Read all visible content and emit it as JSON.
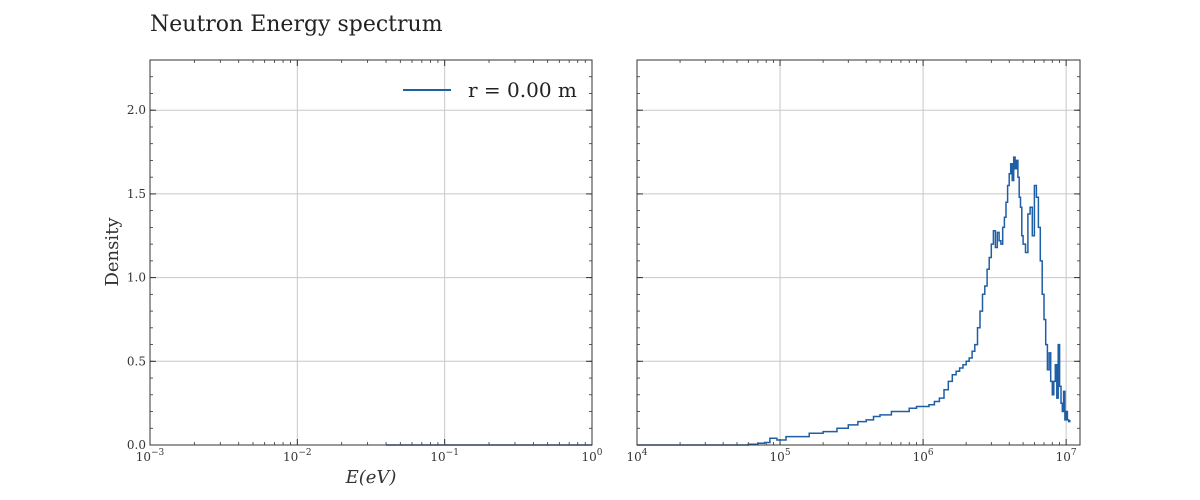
{
  "chart_data": {
    "type": "line",
    "title": "Neutron Energy spectrum",
    "ylabel": "Density",
    "xlabel": "E(eV)",
    "grid": true,
    "legend": {
      "placement": "top-right",
      "entries": [
        "r = 0.00 m"
      ]
    },
    "colors": {
      "series": "#1f5fa5",
      "grid": "#c8c8c8",
      "axes": "#333333"
    },
    "panels": [
      {
        "x_scale": "log",
        "xlim": [
          0.001,
          1
        ],
        "ylim": [
          0,
          2.3
        ],
        "x_ticks": [
          {
            "value": 0.001,
            "base": "10",
            "exp": "−3"
          },
          {
            "value": 0.01,
            "base": "10",
            "exp": "−2"
          },
          {
            "value": 0.1,
            "base": "10",
            "exp": "−1"
          },
          {
            "value": 1,
            "base": "10",
            "exp": "0"
          }
        ],
        "y_ticks": [
          {
            "value": 0.0,
            "label": "0.0"
          },
          {
            "value": 0.5,
            "label": "0.5"
          },
          {
            "value": 1.0,
            "label": "1.0"
          },
          {
            "value": 1.5,
            "label": "1.5"
          },
          {
            "value": 2.0,
            "label": "2.0"
          }
        ],
        "series": [
          {
            "name": "r = 0.00 m",
            "x": [
              0.04,
              0.1,
              0.3,
              1.0
            ],
            "y": [
              0.0,
              0.0,
              0.0,
              0.0
            ]
          }
        ]
      },
      {
        "x_scale": "log",
        "xlim": [
          10000,
          12500000
        ],
        "ylim": [
          0,
          2.3
        ],
        "x_ticks": [
          {
            "value": 10000,
            "base": "10",
            "exp": "4"
          },
          {
            "value": 100000,
            "base": "10",
            "exp": "5"
          },
          {
            "value": 1000000,
            "base": "10",
            "exp": "6"
          },
          {
            "value": 10000000,
            "base": "10",
            "exp": "7"
          }
        ],
        "y_ticks": [
          {
            "value": 0.0,
            "label": ""
          },
          {
            "value": 0.5,
            "label": ""
          },
          {
            "value": 1.0,
            "label": ""
          },
          {
            "value": 1.5,
            "label": ""
          },
          {
            "value": 2.0,
            "label": ""
          }
        ],
        "series": [
          {
            "name": "r = 0.00 m",
            "x": [
              10000,
              30000,
              60000,
              70000,
              78000,
              85000,
              95000,
              110000,
              130000,
              160000,
              200000,
              250000,
              300000,
              350000,
              400000,
              450000,
              500000,
              600000,
              700000,
              800000,
              900000,
              1000000,
              1100000,
              1200000,
              1300000,
              1400000,
              1500000,
              1600000,
              1700000,
              1800000,
              1900000,
              2000000,
              2100000,
              2200000,
              2300000,
              2400000,
              2500000,
              2600000,
              2700000,
              2800000,
              2900000,
              3000000,
              3100000,
              3200000,
              3300000,
              3400000,
              3500000,
              3600000,
              3700000,
              3800000,
              3900000,
              4000000,
              4100000,
              4200000,
              4300000,
              4400000,
              4500000,
              4600000,
              4700000,
              4800000,
              4900000,
              5000000,
              5200000,
              5400000,
              5600000,
              5800000,
              6000000,
              6200000,
              6400000,
              6600000,
              6800000,
              7000000,
              7200000,
              7400000,
              7600000,
              7800000,
              8000000,
              8200000,
              8400000,
              8600000,
              8800000,
              9000000,
              9200000,
              9400000,
              9600000,
              9800000,
              10000000,
              10200000,
              10400000,
              10600000
            ],
            "y": [
              0.0,
              0.0,
              0.005,
              0.01,
              0.015,
              0.04,
              0.03,
              0.05,
              0.05,
              0.07,
              0.08,
              0.1,
              0.12,
              0.14,
              0.15,
              0.17,
              0.18,
              0.2,
              0.2,
              0.22,
              0.23,
              0.23,
              0.24,
              0.26,
              0.28,
              0.33,
              0.38,
              0.42,
              0.44,
              0.46,
              0.48,
              0.5,
              0.52,
              0.56,
              0.6,
              0.7,
              0.8,
              0.9,
              0.95,
              1.05,
              1.12,
              1.2,
              1.28,
              1.18,
              1.27,
              1.22,
              1.2,
              1.3,
              1.36,
              1.45,
              1.55,
              1.62,
              1.68,
              1.58,
              1.72,
              1.65,
              1.7,
              1.6,
              1.48,
              1.42,
              1.25,
              1.2,
              1.15,
              1.38,
              1.42,
              1.25,
              1.55,
              1.48,
              1.3,
              1.1,
              0.9,
              0.75,
              0.6,
              0.45,
              0.55,
              0.38,
              0.3,
              0.38,
              0.48,
              0.28,
              0.6,
              0.35,
              0.25,
              0.2,
              0.32,
              0.15,
              0.2,
              0.15,
              0.14,
              0.15
            ]
          }
        ]
      }
    ]
  }
}
